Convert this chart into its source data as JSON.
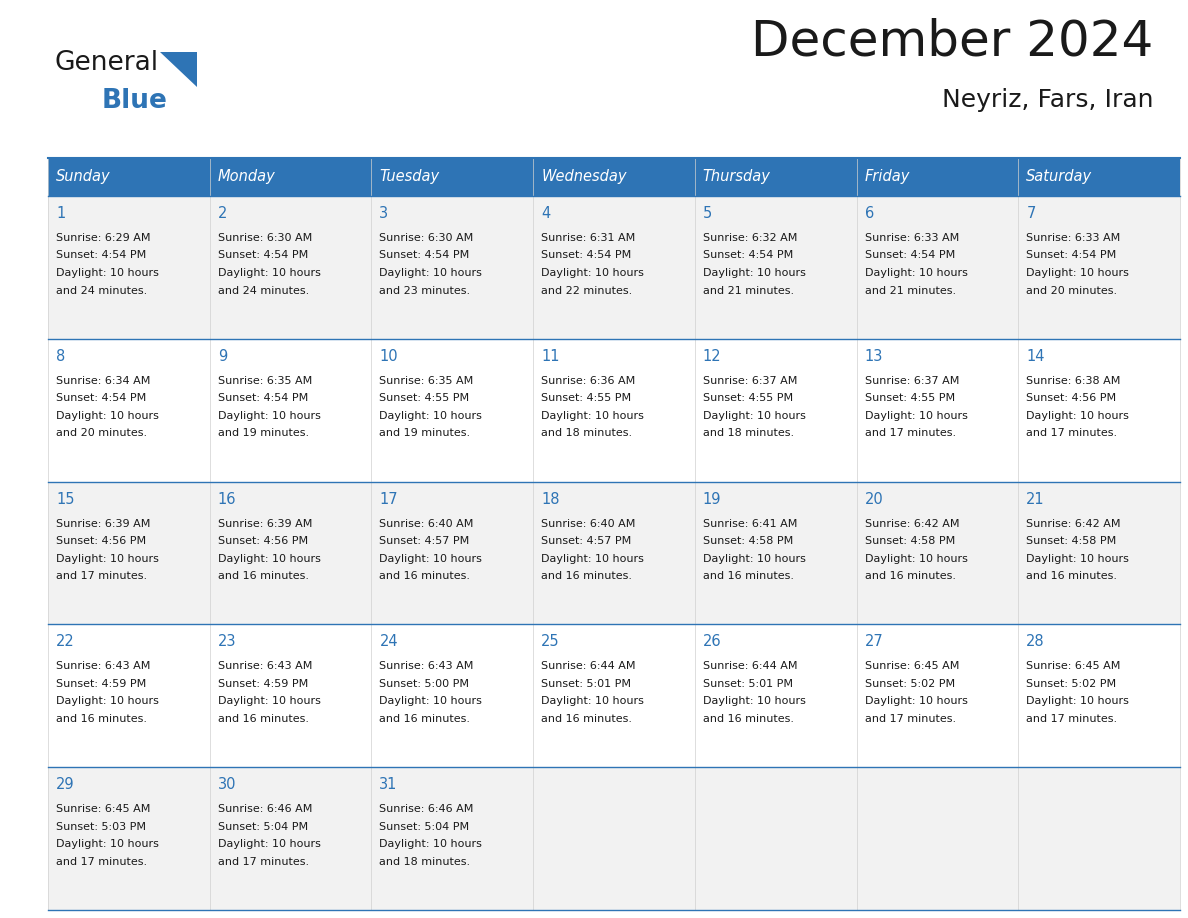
{
  "title": "December 2024",
  "subtitle": "Neyriz, Fars, Iran",
  "days_of_week": [
    "Sunday",
    "Monday",
    "Tuesday",
    "Wednesday",
    "Thursday",
    "Friday",
    "Saturday"
  ],
  "header_bg": "#2E74B5",
  "header_text": "#FFFFFF",
  "row_bg_odd": "#F2F2F2",
  "row_bg_even": "#FFFFFF",
  "day_number_color": "#2E74B5",
  "border_color": "#2E74B5",
  "separator_color": "#2E74B5",
  "vert_line_color": "#D0D0D0",
  "cell_text_color": "#1a1a1a",
  "logo_black": "#1a1a1a",
  "logo_blue": "#2E74B5",
  "calendar_data": [
    [
      {
        "day": 1,
        "sunrise": "6:29 AM",
        "sunset": "4:54 PM",
        "daylight_min": "24"
      },
      {
        "day": 2,
        "sunrise": "6:30 AM",
        "sunset": "4:54 PM",
        "daylight_min": "24"
      },
      {
        "day": 3,
        "sunrise": "6:30 AM",
        "sunset": "4:54 PM",
        "daylight_min": "23"
      },
      {
        "day": 4,
        "sunrise": "6:31 AM",
        "sunset": "4:54 PM",
        "daylight_min": "22"
      },
      {
        "day": 5,
        "sunrise": "6:32 AM",
        "sunset": "4:54 PM",
        "daylight_min": "21"
      },
      {
        "day": 6,
        "sunrise": "6:33 AM",
        "sunset": "4:54 PM",
        "daylight_min": "21"
      },
      {
        "day": 7,
        "sunrise": "6:33 AM",
        "sunset": "4:54 PM",
        "daylight_min": "20"
      }
    ],
    [
      {
        "day": 8,
        "sunrise": "6:34 AM",
        "sunset": "4:54 PM",
        "daylight_min": "20"
      },
      {
        "day": 9,
        "sunrise": "6:35 AM",
        "sunset": "4:54 PM",
        "daylight_min": "19"
      },
      {
        "day": 10,
        "sunrise": "6:35 AM",
        "sunset": "4:55 PM",
        "daylight_min": "19"
      },
      {
        "day": 11,
        "sunrise": "6:36 AM",
        "sunset": "4:55 PM",
        "daylight_min": "18"
      },
      {
        "day": 12,
        "sunrise": "6:37 AM",
        "sunset": "4:55 PM",
        "daylight_min": "18"
      },
      {
        "day": 13,
        "sunrise": "6:37 AM",
        "sunset": "4:55 PM",
        "daylight_min": "17"
      },
      {
        "day": 14,
        "sunrise": "6:38 AM",
        "sunset": "4:56 PM",
        "daylight_min": "17"
      }
    ],
    [
      {
        "day": 15,
        "sunrise": "6:39 AM",
        "sunset": "4:56 PM",
        "daylight_min": "17"
      },
      {
        "day": 16,
        "sunrise": "6:39 AM",
        "sunset": "4:56 PM",
        "daylight_min": "16"
      },
      {
        "day": 17,
        "sunrise": "6:40 AM",
        "sunset": "4:57 PM",
        "daylight_min": "16"
      },
      {
        "day": 18,
        "sunrise": "6:40 AM",
        "sunset": "4:57 PM",
        "daylight_min": "16"
      },
      {
        "day": 19,
        "sunrise": "6:41 AM",
        "sunset": "4:58 PM",
        "daylight_min": "16"
      },
      {
        "day": 20,
        "sunrise": "6:42 AM",
        "sunset": "4:58 PM",
        "daylight_min": "16"
      },
      {
        "day": 21,
        "sunrise": "6:42 AM",
        "sunset": "4:58 PM",
        "daylight_min": "16"
      }
    ],
    [
      {
        "day": 22,
        "sunrise": "6:43 AM",
        "sunset": "4:59 PM",
        "daylight_min": "16"
      },
      {
        "day": 23,
        "sunrise": "6:43 AM",
        "sunset": "4:59 PM",
        "daylight_min": "16"
      },
      {
        "day": 24,
        "sunrise": "6:43 AM",
        "sunset": "5:00 PM",
        "daylight_min": "16"
      },
      {
        "day": 25,
        "sunrise": "6:44 AM",
        "sunset": "5:01 PM",
        "daylight_min": "16"
      },
      {
        "day": 26,
        "sunrise": "6:44 AM",
        "sunset": "5:01 PM",
        "daylight_min": "16"
      },
      {
        "day": 27,
        "sunrise": "6:45 AM",
        "sunset": "5:02 PM",
        "daylight_min": "17"
      },
      {
        "day": 28,
        "sunrise": "6:45 AM",
        "sunset": "5:02 PM",
        "daylight_min": "17"
      }
    ],
    [
      {
        "day": 29,
        "sunrise": "6:45 AM",
        "sunset": "5:03 PM",
        "daylight_min": "17"
      },
      {
        "day": 30,
        "sunrise": "6:46 AM",
        "sunset": "5:04 PM",
        "daylight_min": "17"
      },
      {
        "day": 31,
        "sunrise": "6:46 AM",
        "sunset": "5:04 PM",
        "daylight_min": "18"
      },
      null,
      null,
      null,
      null
    ]
  ]
}
